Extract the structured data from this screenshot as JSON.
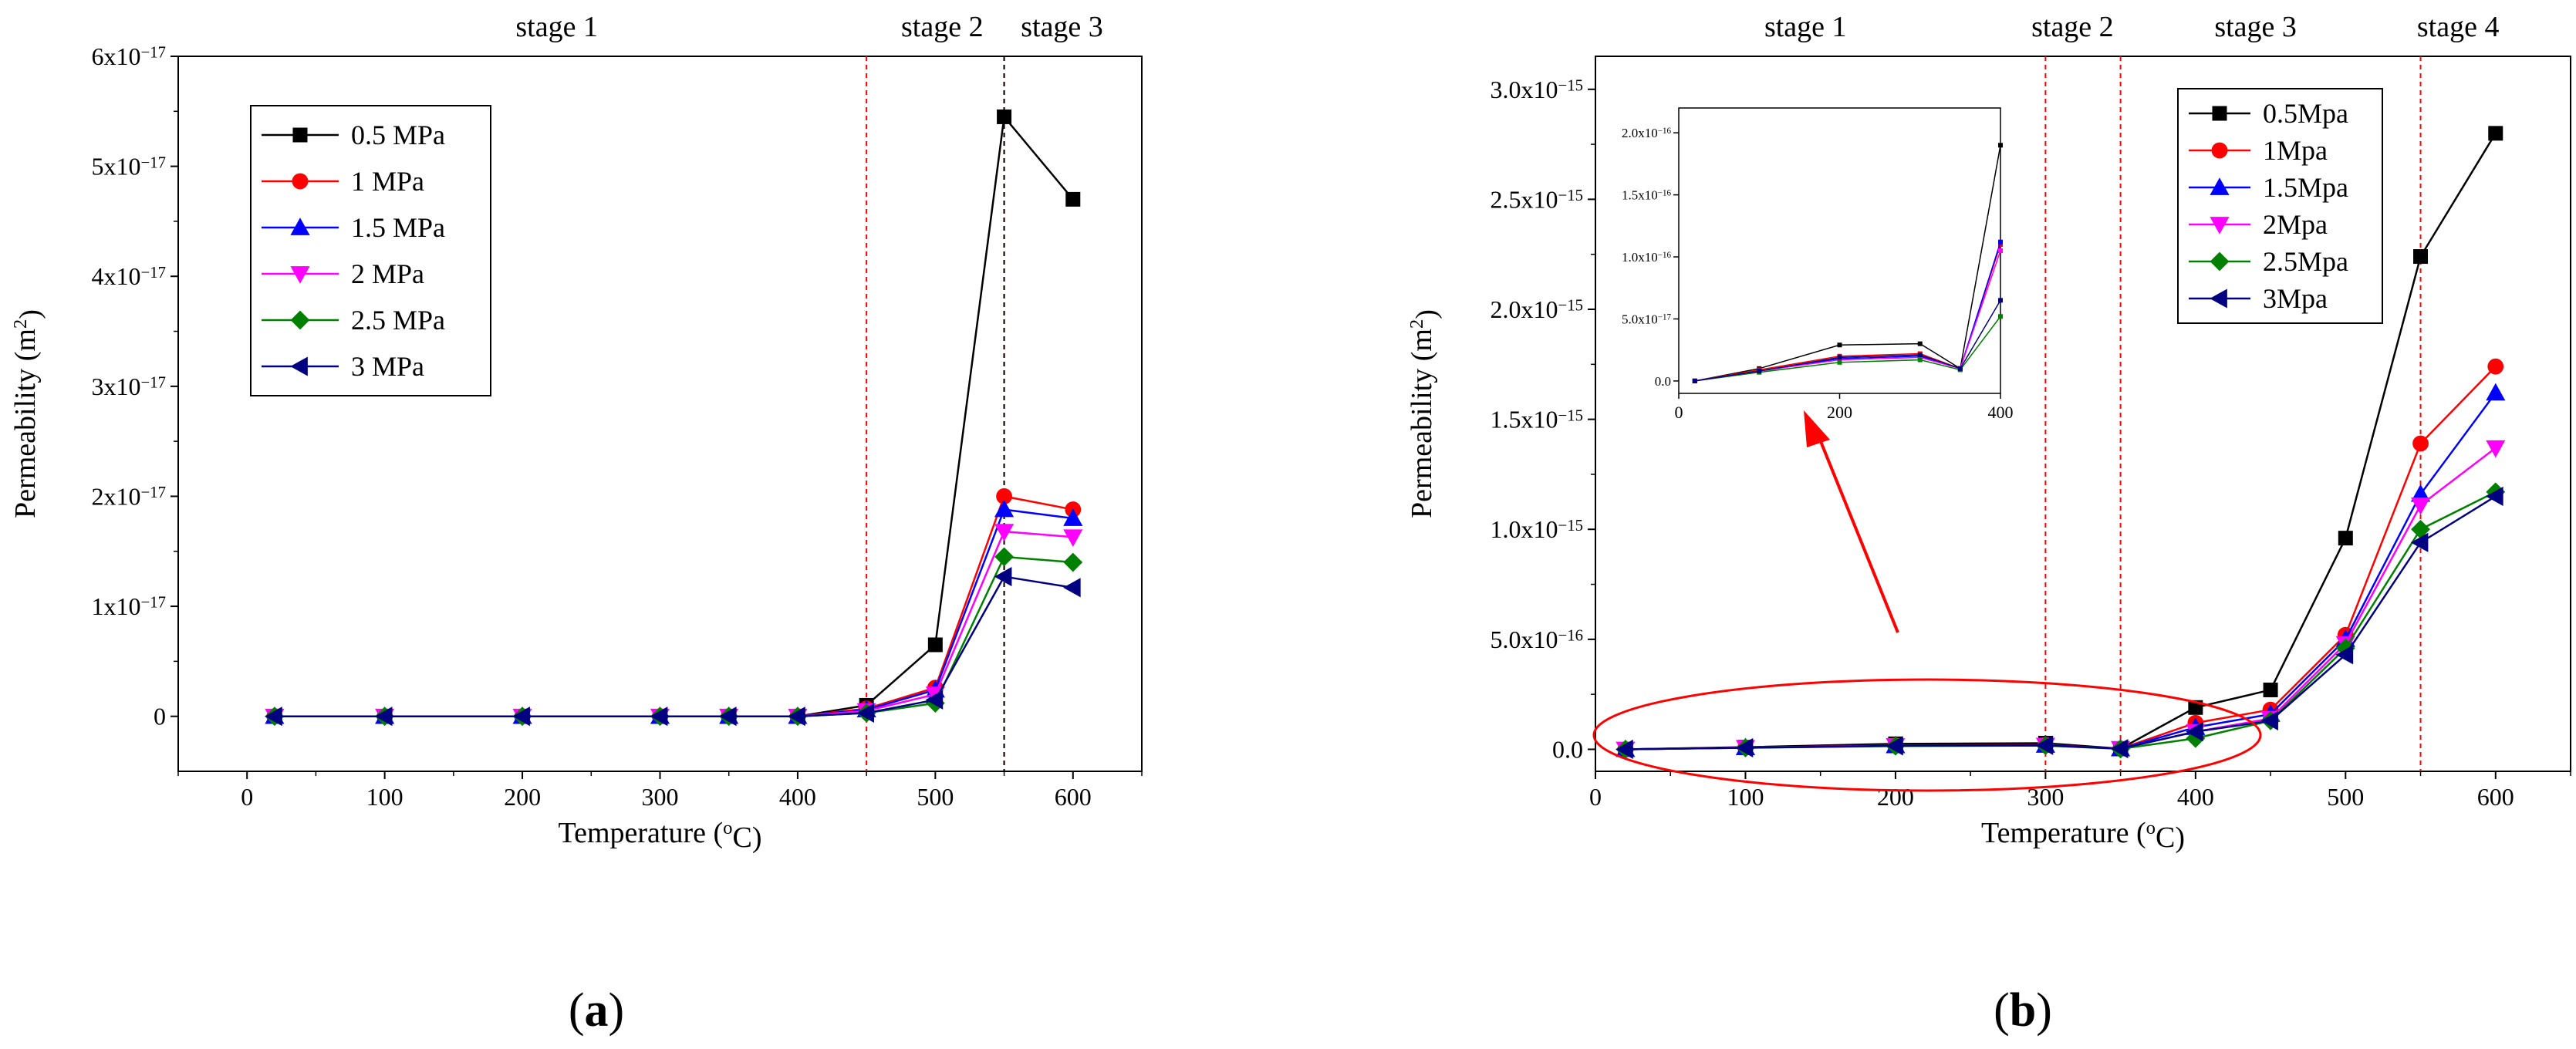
{
  "chart_data": [
    {
      "panel": "a",
      "panel_label": "(a)",
      "type": "line",
      "xlabel": "Temperature (°C)",
      "ylabel": "Permeability (m²)",
      "xlim": [
        -50,
        650
      ],
      "ylim": [
        -5e-18,
        6e-17
      ],
      "x": [
        20,
        100,
        200,
        300,
        350,
        400,
        450,
        500,
        550,
        600
      ],
      "x_ticks": [
        0,
        100,
        200,
        300,
        400,
        500,
        600
      ],
      "x_tick_labels": [
        "0",
        "100",
        "200",
        "300",
        "400",
        "500",
        "600"
      ],
      "y_ticks": [
        0,
        1e-17,
        2e-17,
        3e-17,
        4e-17,
        5e-17,
        6e-17
      ],
      "y_tick_labels": [
        {
          "base": "0",
          "exp": ""
        },
        {
          "base": "1x10",
          "exp": "−17"
        },
        {
          "base": "2x10",
          "exp": "−17"
        },
        {
          "base": "3x10",
          "exp": "−17"
        },
        {
          "base": "4x10",
          "exp": "−17"
        },
        {
          "base": "5x10",
          "exp": "−17"
        },
        {
          "base": "6x10",
          "exp": "−17"
        }
      ],
      "stages": [
        {
          "label": "stage 1",
          "x": 225
        },
        {
          "label": "stage 2",
          "x": 505
        },
        {
          "label": "stage 3",
          "x": 592
        }
      ],
      "vlines": [
        {
          "x": 450,
          "color": "#ff0000"
        },
        {
          "x": 550,
          "color": "#ff0000"
        },
        {
          "x": 550,
          "color": "#000000"
        }
      ],
      "series": [
        {
          "name": "0.5 MPa",
          "color": "#000000",
          "marker": "square",
          "values": [
            0,
            0,
            0,
            0,
            0,
            0,
            1e-18,
            6.5e-18,
            5.45e-17,
            4.7e-17
          ]
        },
        {
          "name": "1 MPa",
          "color": "#ff0000",
          "marker": "circle",
          "values": [
            0,
            0,
            0,
            0,
            0,
            0,
            7e-19,
            2.6e-18,
            2e-17,
            1.88e-17
          ]
        },
        {
          "name": "1.5 MPa",
          "color": "#0000ff",
          "marker": "triangle-up",
          "values": [
            0,
            0,
            0,
            0,
            0,
            0,
            6e-19,
            2.4e-18,
            1.88e-17,
            1.8e-17
          ]
        },
        {
          "name": "2 MPa",
          "color": "#ff00ff",
          "marker": "triangle-down",
          "values": [
            0,
            0,
            0,
            0,
            0,
            0,
            5e-19,
            2e-18,
            1.68e-17,
            1.63e-17
          ]
        },
        {
          "name": "2.5 MPa",
          "color": "#008000",
          "marker": "diamond",
          "values": [
            0,
            0,
            0,
            0,
            0,
            0,
            3e-19,
            1.2e-18,
            1.45e-17,
            1.4e-17
          ]
        },
        {
          "name": "3 MPa",
          "color": "#000080",
          "marker": "triangle-left",
          "values": [
            0,
            0,
            0,
            0,
            0,
            0,
            3e-19,
            1.5e-18,
            1.27e-17,
            1.17e-17
          ]
        }
      ]
    },
    {
      "panel": "b",
      "panel_label": "(b)",
      "type": "line",
      "xlabel": "Temperature (°C)",
      "ylabel": "Permeability (m²)",
      "xlim": [
        0,
        650
      ],
      "ylim": [
        -1e-16,
        3.15e-15
      ],
      "x": [
        20,
        100,
        200,
        300,
        350,
        400,
        450,
        500,
        550,
        600
      ],
      "x_ticks": [
        0,
        100,
        200,
        300,
        400,
        500,
        600
      ],
      "x_tick_labels": [
        "0",
        "100",
        "200",
        "300",
        "400",
        "500",
        "600"
      ],
      "y_ticks": [
        0,
        5e-16,
        1e-15,
        1.5e-15,
        2e-15,
        2.5e-15,
        3e-15
      ],
      "y_tick_labels": [
        {
          "base": "0.0",
          "exp": ""
        },
        {
          "base": "5.0x10",
          "exp": "−16"
        },
        {
          "base": "1.0x10",
          "exp": "−15"
        },
        {
          "base": "1.5x10",
          "exp": "−15"
        },
        {
          "base": "2.0x10",
          "exp": "−15"
        },
        {
          "base": "2.5x10",
          "exp": "−15"
        },
        {
          "base": "3.0x10",
          "exp": "−15"
        }
      ],
      "stages": [
        {
          "label": "stage 1",
          "x": 140
        },
        {
          "label": "stage 2",
          "x": 318
        },
        {
          "label": "stage 3",
          "x": 440
        },
        {
          "label": "stage 4",
          "x": 575
        }
      ],
      "vlines": [
        {
          "x": 300,
          "color": "#ff0000"
        },
        {
          "x": 350,
          "color": "#ff0000"
        },
        {
          "x": 550,
          "color": "#ff0000"
        }
      ],
      "series": [
        {
          "name": "0.5Mpa",
          "color": "#000000",
          "marker": "square",
          "values": [
            0,
            1e-17,
            2.5e-17,
            2.8e-17,
            3e-18,
            1.9e-16,
            2.7e-16,
            9.6e-16,
            2.24e-15,
            2.8e-15
          ]
        },
        {
          "name": "1Mpa",
          "color": "#ff0000",
          "marker": "circle",
          "values": [
            0,
            8e-18,
            1.8e-17,
            2e-17,
            3e-18,
            1.2e-16,
            1.8e-16,
            5.2e-16,
            1.39e-15,
            1.74e-15
          ]
        },
        {
          "name": "1.5Mpa",
          "color": "#0000ff",
          "marker": "triangle-up",
          "values": [
            0,
            8e-18,
            1.7e-17,
            1.9e-17,
            3e-18,
            1e-16,
            1.6e-16,
            5e-16,
            1.16e-15,
            1.62e-15
          ]
        },
        {
          "name": "2Mpa",
          "color": "#ff00ff",
          "marker": "triangle-down",
          "values": [
            0,
            8e-18,
            1.6e-17,
            1.8e-17,
            3e-18,
            8e-17,
            1.4e-16,
            4.8e-16,
            1.11e-15,
            1.37e-15
          ]
        },
        {
          "name": "2.5Mpa",
          "color": "#008000",
          "marker": "diamond",
          "values": [
            0,
            7e-18,
            1.5e-17,
            1.7e-17,
            2e-18,
            5e-17,
            1.3e-16,
            4.6e-16,
            1e-15,
            1.17e-15
          ]
        },
        {
          "name": "3Mpa",
          "color": "#000080",
          "marker": "triangle-left",
          "values": [
            0,
            7e-18,
            1.6e-17,
            1.8e-17,
            3e-18,
            8e-17,
            1.3e-16,
            4.3e-16,
            9.4e-16,
            1.15e-15
          ]
        }
      ],
      "inset": {
        "xlim": [
          0,
          400
        ],
        "ylim": [
          -1e-17,
          2.2e-16
        ],
        "x": [
          20,
          100,
          200,
          300,
          350,
          400
        ],
        "x_ticks": [
          0,
          200,
          400
        ],
        "x_tick_labels": [
          "0",
          "200",
          "400"
        ],
        "y_ticks": [
          0,
          5e-17,
          1e-16,
          1.5e-16,
          2e-16
        ],
        "y_tick_labels": [
          {
            "base": "0.0",
            "exp": ""
          },
          {
            "base": "5.0x10",
            "exp": "−17"
          },
          {
            "base": "1.0x10",
            "exp": "−16"
          },
          {
            "base": "1.5x10",
            "exp": "−16"
          },
          {
            "base": "2.0x10",
            "exp": "−16"
          }
        ],
        "series": [
          {
            "name": "0.5Mpa",
            "color": "#000000",
            "values": [
              0,
              1e-17,
              2.9e-17,
              3e-17,
              1e-17,
              1.9e-16
            ]
          },
          {
            "name": "1Mpa",
            "color": "#ff0000",
            "values": [
              0,
              9e-18,
              2e-17,
              2.2e-17,
              1e-17,
              1.1e-16
            ]
          },
          {
            "name": "1.5Mpa",
            "color": "#0000ff",
            "values": [
              0,
              8e-18,
              1.8e-17,
              2e-17,
              1e-17,
              1.12e-16
            ]
          },
          {
            "name": "2Mpa",
            "color": "#ff00ff",
            "values": [
              0,
              8e-18,
              1.7e-17,
              1.9e-17,
              1e-17,
              1.05e-16
            ]
          },
          {
            "name": "2.5Mpa",
            "color": "#008000",
            "values": [
              0,
              7e-18,
              1.5e-17,
              1.7e-17,
              9e-18,
              5.2e-17
            ]
          },
          {
            "name": "3Mpa",
            "color": "#000080",
            "values": [
              0,
              8e-18,
              1.9e-17,
              2.1e-17,
              1e-17,
              6.5e-17
            ]
          }
        ]
      }
    }
  ]
}
